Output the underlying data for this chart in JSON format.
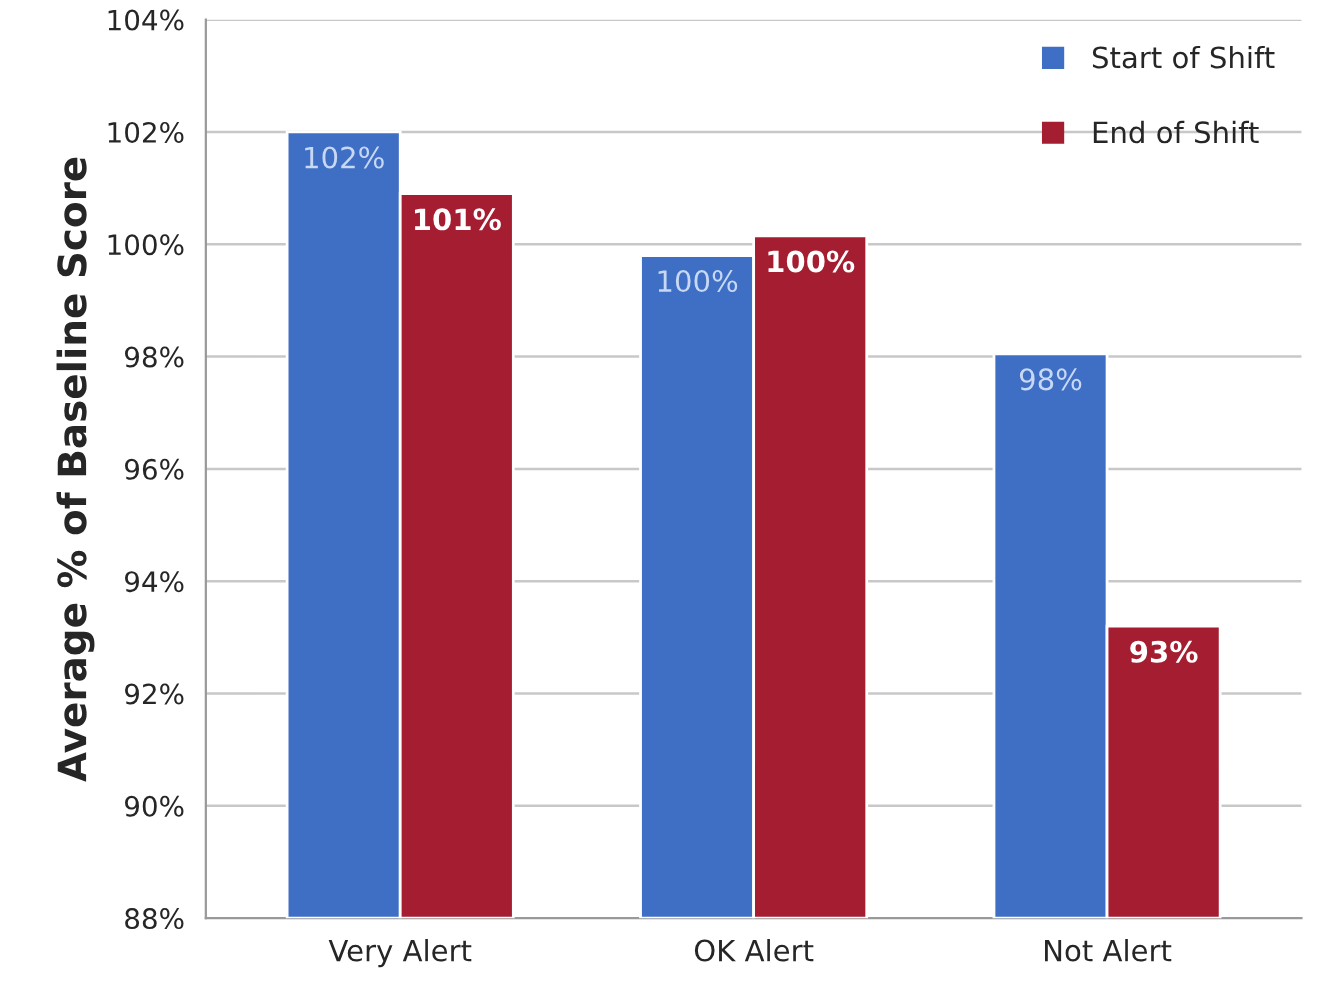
{
  "chart_data": {
    "type": "bar",
    "ylabel": "Average % of Baseline Score",
    "categories": [
      "Very Alert",
      "OK Alert",
      "Not Alert"
    ],
    "series": [
      {
        "name": "Start of Shift",
        "color": "#3e6fc4",
        "values": [
          102.0,
          99.8,
          98.05
        ],
        "value_labels": [
          "102%",
          "100%",
          "98%"
        ]
      },
      {
        "name": "End of Shift",
        "color": "#a51d31",
        "values": [
          100.9,
          100.15,
          93.2
        ],
        "value_labels": [
          "101%",
          "100%",
          "93%"
        ]
      }
    ],
    "ylim": [
      88,
      104
    ],
    "yticks": [
      {
        "value": 88,
        "label": "88%"
      },
      {
        "value": 90,
        "label": "90%"
      },
      {
        "value": 92,
        "label": "92%"
      },
      {
        "value": 94,
        "label": "94%"
      },
      {
        "value": 96,
        "label": "96%"
      },
      {
        "value": 98,
        "label": "98%"
      },
      {
        "value": 100,
        "label": "100%"
      },
      {
        "value": 102,
        "label": "102%"
      },
      {
        "value": 104,
        "label": "104%"
      }
    ],
    "grid": "y",
    "legend": "top right"
  }
}
